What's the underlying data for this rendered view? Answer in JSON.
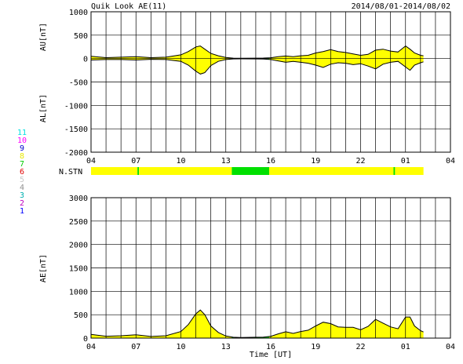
{
  "header": {
    "title": "Quik Look AE(11)",
    "date_range": "2014/08/01-2014/08/02"
  },
  "station_legend": {
    "labels": [
      "11",
      "10",
      "9",
      "8",
      "7",
      "6",
      "5",
      "4",
      "3",
      "2",
      "1"
    ],
    "colors": [
      "#00e0e0",
      "#ff00ff",
      "#0000cc",
      "#e8e800",
      "#00cc00",
      "#e00000",
      "#c8c8c8",
      "#909090",
      "#00b0b0",
      "#c000c0",
      "#0000ff"
    ]
  },
  "nstn": {
    "label": "N.STN"
  },
  "colors": {
    "fill_main": "#ffff00",
    "fill_low": "#00e000",
    "grid": "#000000",
    "trace": "#000000"
  },
  "chart_data": [
    {
      "type": "area",
      "name": "au-al-panel",
      "ylabel_top": "AU[nT]",
      "ylabel_bottom": "AL[nT]",
      "xlim": [
        4,
        28
      ],
      "ylim": [
        -2000,
        1000
      ],
      "yticks": [
        1000,
        500,
        0,
        -500,
        -1000,
        -1500,
        -2000
      ],
      "xtick_labels": [
        "04",
        "07",
        "10",
        "13",
        "16",
        "19",
        "22",
        "01",
        "04"
      ],
      "grid": true,
      "x": [
        4,
        5,
        6,
        7,
        8,
        9,
        10,
        10.5,
        11,
        11.3,
        11.6,
        12,
        12.5,
        13,
        13.5,
        14,
        15,
        15.5,
        16,
        16.5,
        17,
        17.5,
        18,
        18.5,
        19,
        19.5,
        20,
        20.5,
        21,
        21.5,
        22,
        22.5,
        23,
        23.5,
        24,
        24.5,
        25,
        25.3,
        25.6,
        26,
        26.2
      ],
      "au": [
        50,
        20,
        30,
        40,
        20,
        30,
        80,
        150,
        250,
        270,
        200,
        110,
        60,
        25,
        10,
        8,
        10,
        12,
        18,
        40,
        55,
        40,
        60,
        70,
        120,
        150,
        190,
        150,
        130,
        100,
        70,
        90,
        180,
        200,
        160,
        140,
        270,
        200,
        120,
        70,
        60
      ],
      "al": [
        -30,
        -20,
        -20,
        -30,
        -15,
        -20,
        -60,
        -140,
        -270,
        -330,
        -300,
        -150,
        -60,
        -20,
        -8,
        -6,
        -8,
        -10,
        -20,
        -50,
        -80,
        -60,
        -80,
        -100,
        -140,
        -190,
        -120,
        -90,
        -100,
        -130,
        -110,
        -160,
        -220,
        -120,
        -80,
        -60,
        -180,
        -250,
        -140,
        -90,
        -70
      ]
    },
    {
      "type": "area",
      "name": "ae-panel",
      "ylabel": "AE[nT]",
      "xlabel": "Time [UT]",
      "xlim": [
        4,
        28
      ],
      "ylim": [
        0,
        3000
      ],
      "yticks": [
        3000,
        2500,
        2000,
        1500,
        1000,
        500,
        0
      ],
      "xtick_labels": [
        "04",
        "07",
        "10",
        "13",
        "16",
        "19",
        "22",
        "01",
        "04"
      ],
      "grid": true,
      "x": [
        4,
        5,
        6,
        7,
        8,
        9,
        10,
        10.5,
        11,
        11.3,
        11.6,
        12,
        12.5,
        13,
        13.5,
        14,
        15,
        15.5,
        16,
        16.5,
        17,
        17.5,
        18,
        18.5,
        19,
        19.5,
        20,
        20.5,
        21,
        21.5,
        22,
        22.5,
        23,
        23.5,
        24,
        24.5,
        25,
        25.3,
        25.6,
        26,
        26.2
      ],
      "ae": [
        80,
        40,
        50,
        70,
        35,
        50,
        140,
        290,
        520,
        600,
        500,
        260,
        120,
        45,
        18,
        14,
        18,
        22,
        38,
        90,
        135,
        100,
        140,
        170,
        260,
        340,
        310,
        240,
        230,
        230,
        180,
        250,
        400,
        320,
        240,
        200,
        450,
        450,
        260,
        160,
        130
      ]
    }
  ],
  "nstn_segments": [
    {
      "from": 4,
      "to": 7.1,
      "value": "yellow"
    },
    {
      "from": 7.1,
      "to": 7.2,
      "value": "green"
    },
    {
      "from": 7.2,
      "to": 13.4,
      "value": "yellow"
    },
    {
      "from": 13.4,
      "to": 15.9,
      "value": "green"
    },
    {
      "from": 15.9,
      "to": 24.2,
      "value": "yellow"
    },
    {
      "from": 24.2,
      "to": 24.3,
      "value": "green"
    },
    {
      "from": 24.3,
      "to": 26.2,
      "value": "yellow"
    }
  ],
  "low_station_range": {
    "from": 13.4,
    "to": 15.9
  }
}
